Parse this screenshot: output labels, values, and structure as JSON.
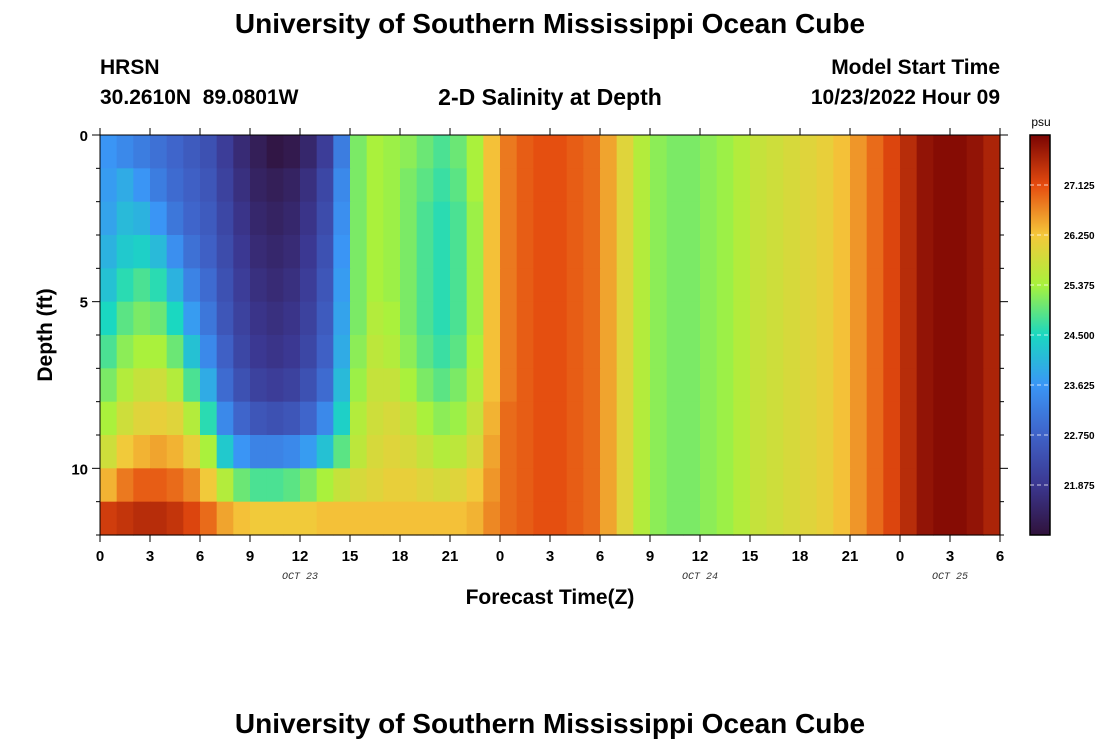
{
  "page": {
    "title_top": "University of Southern Mississippi Ocean Cube",
    "title_bottom": "University of Southern Mississippi Ocean Cube",
    "station_name": "HRSN",
    "station_coords": "30.2610N  89.0801W",
    "model_start_label": "Model Start Time",
    "model_start_value": "10/23/2022 Hour 09"
  },
  "chart_data": {
    "type": "heatmap",
    "title": "2-D Salinity at Depth",
    "xlabel": "Forecast Time(Z)",
    "ylabel": "Depth (ft)",
    "x_range_hours": [
      0,
      54
    ],
    "y_range_ft": [
      0,
      12
    ],
    "x_ticks": [
      {
        "hour": 0,
        "label": "0"
      },
      {
        "hour": 3,
        "label": "3"
      },
      {
        "hour": 6,
        "label": "6"
      },
      {
        "hour": 9,
        "label": "9"
      },
      {
        "hour": 12,
        "label": "12"
      },
      {
        "hour": 15,
        "label": "15"
      },
      {
        "hour": 18,
        "label": "18"
      },
      {
        "hour": 21,
        "label": "21"
      },
      {
        "hour": 24,
        "label": "0"
      },
      {
        "hour": 27,
        "label": "3"
      },
      {
        "hour": 30,
        "label": "6"
      },
      {
        "hour": 33,
        "label": "9"
      },
      {
        "hour": 36,
        "label": "12"
      },
      {
        "hour": 39,
        "label": "15"
      },
      {
        "hour": 42,
        "label": "18"
      },
      {
        "hour": 45,
        "label": "21"
      },
      {
        "hour": 48,
        "label": "0"
      },
      {
        "hour": 51,
        "label": "3"
      },
      {
        "hour": 54,
        "label": "6"
      }
    ],
    "date_labels": [
      {
        "hour": 12,
        "label": "OCT 23"
      },
      {
        "hour": 36,
        "label": "OCT 24"
      },
      {
        "hour": 51,
        "label": "OCT 25"
      }
    ],
    "y_ticks": [
      {
        "depth": 0,
        "label": "0"
      },
      {
        "depth": 5,
        "label": "5"
      },
      {
        "depth": 10,
        "label": "10"
      }
    ],
    "colorbar": {
      "unit": "psu",
      "min": 21.0,
      "max": 28.0,
      "ticks": [
        {
          "value": 27.125,
          "label": "27.125"
        },
        {
          "value": 26.25,
          "label": "26.250"
        },
        {
          "value": 25.375,
          "label": "25.375"
        },
        {
          "value": 24.5,
          "label": "24.500"
        },
        {
          "value": 23.625,
          "label": "23.625"
        },
        {
          "value": 22.75,
          "label": "22.750"
        },
        {
          "value": 21.875,
          "label": "21.875"
        }
      ]
    },
    "depth_levels_ft": [
      0.5,
      1.5,
      2.5,
      3.5,
      4.5,
      5.5,
      6.5,
      7.5,
      8.5,
      9.5,
      10.5,
      11.5
    ],
    "time_steps_hours": [
      0,
      1,
      2,
      3,
      4,
      5,
      6,
      7,
      8,
      9,
      10,
      11,
      12,
      13,
      14,
      15,
      16,
      17,
      18,
      19,
      20,
      21,
      22,
      23,
      24,
      25,
      26,
      27,
      28,
      29,
      30,
      31,
      32,
      33,
      34,
      35,
      36,
      37,
      38,
      39,
      40,
      41,
      42,
      43,
      44,
      45,
      46,
      47,
      48,
      49,
      50,
      51,
      52,
      53
    ],
    "salinity_psu_by_depth": [
      [
        23.6,
        23.4,
        23.2,
        23.0,
        22.8,
        22.6,
        22.4,
        22.0,
        21.6,
        21.3,
        21.1,
        21.2,
        21.5,
        22.0,
        23.2,
        25.1,
        25.4,
        25.3,
        25.2,
        25.0,
        24.8,
        25.0,
        25.4,
        26.3,
        26.8,
        27.0,
        27.1,
        27.1,
        27.0,
        26.9,
        26.5,
        26.0,
        25.5,
        25.2,
        25.1,
        25.1,
        25.2,
        25.3,
        25.5,
        25.7,
        25.8,
        25.9,
        26.0,
        26.1,
        26.3,
        26.6,
        26.9,
        27.2,
        27.5,
        27.8,
        27.9,
        27.9,
        27.8,
        27.6
      ],
      [
        23.7,
        23.9,
        23.6,
        23.2,
        22.9,
        22.7,
        22.5,
        22.1,
        21.7,
        21.4,
        21.3,
        21.4,
        21.7,
        22.2,
        23.4,
        25.1,
        25.4,
        25.3,
        25.1,
        24.9,
        24.7,
        24.9,
        25.4,
        26.3,
        26.8,
        27.0,
        27.1,
        27.1,
        27.0,
        26.9,
        26.5,
        26.0,
        25.5,
        25.2,
        25.1,
        25.1,
        25.2,
        25.3,
        25.5,
        25.7,
        25.8,
        25.9,
        26.0,
        26.1,
        26.3,
        26.6,
        26.9,
        27.2,
        27.5,
        27.8,
        27.9,
        27.9,
        27.8,
        27.6
      ],
      [
        23.8,
        24.1,
        24.0,
        23.6,
        23.1,
        22.8,
        22.6,
        22.2,
        21.8,
        21.5,
        21.4,
        21.5,
        21.8,
        22.3,
        23.5,
        25.1,
        25.4,
        25.3,
        25.1,
        24.8,
        24.6,
        24.8,
        25.3,
        26.3,
        26.8,
        27.0,
        27.1,
        27.1,
        27.0,
        26.9,
        26.5,
        26.0,
        25.5,
        25.2,
        25.1,
        25.1,
        25.2,
        25.3,
        25.5,
        25.7,
        25.8,
        25.9,
        26.0,
        26.1,
        26.3,
        26.6,
        26.9,
        27.2,
        27.5,
        27.8,
        27.9,
        27.9,
        27.8,
        27.6
      ],
      [
        24.0,
        24.3,
        24.4,
        24.1,
        23.5,
        23.0,
        22.7,
        22.3,
        21.9,
        21.6,
        21.5,
        21.6,
        21.9,
        22.4,
        23.6,
        25.1,
        25.4,
        25.3,
        25.1,
        24.8,
        24.6,
        24.8,
        25.3,
        26.3,
        26.8,
        27.0,
        27.1,
        27.1,
        27.0,
        26.9,
        26.5,
        26.0,
        25.5,
        25.2,
        25.1,
        25.1,
        25.2,
        25.3,
        25.5,
        25.7,
        25.8,
        25.9,
        26.0,
        26.1,
        26.3,
        26.6,
        26.9,
        27.2,
        27.5,
        27.8,
        27.9,
        27.9,
        27.8,
        27.6
      ],
      [
        24.2,
        24.6,
        24.8,
        24.6,
        24.0,
        23.3,
        22.9,
        22.4,
        22.0,
        21.7,
        21.6,
        21.7,
        22.0,
        22.5,
        23.7,
        25.1,
        25.4,
        25.3,
        25.1,
        24.8,
        24.6,
        24.8,
        25.3,
        26.3,
        26.8,
        27.0,
        27.1,
        27.1,
        27.0,
        26.9,
        26.5,
        26.0,
        25.5,
        25.2,
        25.1,
        25.1,
        25.2,
        25.3,
        25.5,
        25.7,
        25.8,
        25.9,
        26.0,
        26.1,
        26.3,
        26.6,
        26.9,
        27.2,
        27.5,
        27.8,
        27.9,
        27.9,
        27.8,
        27.6
      ],
      [
        24.5,
        24.9,
        25.1,
        25.0,
        24.5,
        23.7,
        23.1,
        22.5,
        22.1,
        21.8,
        21.7,
        21.8,
        22.1,
        22.6,
        23.8,
        25.1,
        25.5,
        25.4,
        25.1,
        24.8,
        24.6,
        24.8,
        25.3,
        26.3,
        26.8,
        27.0,
        27.1,
        27.1,
        27.0,
        26.9,
        26.5,
        26.0,
        25.5,
        25.2,
        25.1,
        25.1,
        25.2,
        25.3,
        25.5,
        25.7,
        25.8,
        25.9,
        26.0,
        26.1,
        26.3,
        26.6,
        26.9,
        27.2,
        27.5,
        27.8,
        27.9,
        27.9,
        27.8,
        27.6
      ],
      [
        24.8,
        25.2,
        25.4,
        25.4,
        25.0,
        24.2,
        23.4,
        22.7,
        22.2,
        21.9,
        21.8,
        21.9,
        22.2,
        22.7,
        23.9,
        25.2,
        25.6,
        25.5,
        25.2,
        24.9,
        24.7,
        24.9,
        25.4,
        26.3,
        26.8,
        27.0,
        27.1,
        27.1,
        27.0,
        26.9,
        26.5,
        26.0,
        25.5,
        25.2,
        25.1,
        25.1,
        25.2,
        25.3,
        25.5,
        25.7,
        25.8,
        25.9,
        26.0,
        26.1,
        26.3,
        26.6,
        26.9,
        27.2,
        27.5,
        27.8,
        27.9,
        27.9,
        27.8,
        27.6
      ],
      [
        25.1,
        25.5,
        25.7,
        25.8,
        25.5,
        24.8,
        23.9,
        22.9,
        22.4,
        22.1,
        22.0,
        22.1,
        22.4,
        22.9,
        24.1,
        25.3,
        25.7,
        25.7,
        25.4,
        25.1,
        24.9,
        25.1,
        25.5,
        26.3,
        26.8,
        27.0,
        27.1,
        27.1,
        27.0,
        26.9,
        26.5,
        26.0,
        25.5,
        25.2,
        25.1,
        25.1,
        25.2,
        25.3,
        25.5,
        25.7,
        25.8,
        25.9,
        26.0,
        26.1,
        26.3,
        26.6,
        26.9,
        27.2,
        27.5,
        27.8,
        27.9,
        27.9,
        27.8,
        27.6
      ],
      [
        25.4,
        25.8,
        26.0,
        26.1,
        26.0,
        25.5,
        24.6,
        23.4,
        22.8,
        22.5,
        22.4,
        22.5,
        22.8,
        23.4,
        24.4,
        25.5,
        25.8,
        25.9,
        25.7,
        25.4,
        25.2,
        25.3,
        25.7,
        26.4,
        26.9,
        27.0,
        27.1,
        27.1,
        27.0,
        26.9,
        26.5,
        26.0,
        25.5,
        25.2,
        25.1,
        25.1,
        25.2,
        25.3,
        25.5,
        25.7,
        25.8,
        25.9,
        26.0,
        26.1,
        26.3,
        26.6,
        26.9,
        27.2,
        27.5,
        27.8,
        27.9,
        27.9,
        27.8,
        27.6
      ],
      [
        25.8,
        26.2,
        26.4,
        26.5,
        26.4,
        26.1,
        25.4,
        24.3,
        23.6,
        23.3,
        23.3,
        23.4,
        23.7,
        24.2,
        24.9,
        25.6,
        25.9,
        26.0,
        25.9,
        25.7,
        25.5,
        25.6,
        25.9,
        26.5,
        26.9,
        27.0,
        27.1,
        27.1,
        27.0,
        26.9,
        26.5,
        26.0,
        25.5,
        25.2,
        25.1,
        25.1,
        25.2,
        25.3,
        25.5,
        25.7,
        25.8,
        25.9,
        26.0,
        26.1,
        26.3,
        26.6,
        26.9,
        27.2,
        27.5,
        27.8,
        27.9,
        27.9,
        27.8,
        27.6
      ],
      [
        26.4,
        26.8,
        27.0,
        27.0,
        26.9,
        26.7,
        26.2,
        25.5,
        25.0,
        24.8,
        24.8,
        24.9,
        25.1,
        25.4,
        25.7,
        25.9,
        26.0,
        26.1,
        26.1,
        26.0,
        25.9,
        26.0,
        26.2,
        26.6,
        26.9,
        27.0,
        27.1,
        27.1,
        27.0,
        26.9,
        26.5,
        26.0,
        25.5,
        25.2,
        25.1,
        25.1,
        25.2,
        25.3,
        25.5,
        25.7,
        25.8,
        25.9,
        26.0,
        26.1,
        26.3,
        26.6,
        26.9,
        27.2,
        27.5,
        27.8,
        27.9,
        27.9,
        27.8,
        27.6
      ],
      [
        27.3,
        27.4,
        27.5,
        27.5,
        27.4,
        27.2,
        26.9,
        26.5,
        26.3,
        26.2,
        26.2,
        26.2,
        26.2,
        26.3,
        26.3,
        26.3,
        26.3,
        26.3,
        26.3,
        26.3,
        26.3,
        26.3,
        26.4,
        26.7,
        26.9,
        27.0,
        27.1,
        27.1,
        27.0,
        26.9,
        26.5,
        26.0,
        25.5,
        25.2,
        25.1,
        25.1,
        25.2,
        25.3,
        25.5,
        25.7,
        25.8,
        25.9,
        26.0,
        26.1,
        26.3,
        26.6,
        26.9,
        27.2,
        27.5,
        27.8,
        27.9,
        27.9,
        27.8,
        27.6
      ]
    ]
  }
}
